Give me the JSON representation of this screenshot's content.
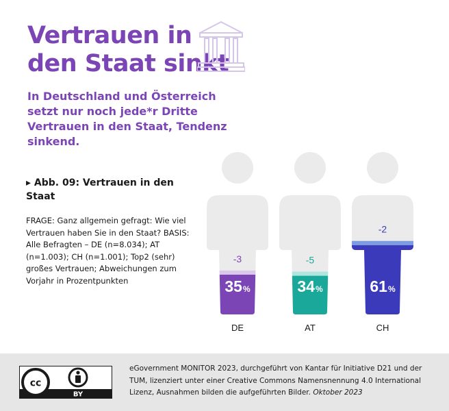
{
  "header": {
    "title": "Vertrauen in den Staat sinkt",
    "subtitle": "In Deutschland und Österreich setzt nur noch jede*r Dritte Vertrauen in den Staat, Tendenz sinkend.",
    "icon": "government-building-icon"
  },
  "figure": {
    "heading_arrow": "▸",
    "heading": "Abb. 09: Vertrauen in den Staat",
    "note": "FRAGE: Ganz allgemein gefragt: Wie viel Vertrauen haben Sie in den Staat? BASIS: Alle Befragten – DE (n=8.034); AT (n=1.003); CH (n=1.001); Top2 (sehr) großes Vertrauen; Abweichungen zum Vorjahr in Prozentpunkten"
  },
  "chart_data": {
    "type": "bar",
    "categories": [
      "DE",
      "AT",
      "CH"
    ],
    "values": [
      35,
      34,
      61
    ],
    "changes": [
      -3,
      -5,
      -2
    ],
    "change_labels": [
      "-3",
      "-5",
      "-2"
    ],
    "unit": "%",
    "ylim": [
      0,
      100
    ],
    "colors": [
      "#7b45b5",
      "#19a89a",
      "#3a3aba"
    ],
    "light_colors": [
      "#d9c7ec",
      "#aee6df",
      "#7b9ce0"
    ],
    "change_label_colors": [
      "#7b45b5",
      "#19a89a",
      "#3a3aba"
    ],
    "silhouette_color": "#ebebeb"
  },
  "footer": {
    "text": "eGovernment MONITOR 2023, durchgeführt von Kantar für Initiative D21 und der TUM, lizenziert unter einer Creative Commons Namensnennung 4.0 International Lizenz, Ausnahmen bilden die aufgeführten Bilder.",
    "date": "Oktober 2023",
    "license_badge": "cc-by-icon",
    "badge_text": "BY"
  }
}
